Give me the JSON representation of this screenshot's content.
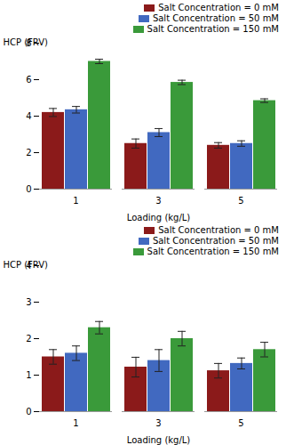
{
  "chart_data": [
    {
      "type": "bar",
      "categories": [
        "1",
        "3",
        "5"
      ],
      "series": [
        {
          "name": "Salt Concentration = 0 mM",
          "color": "#8B1A1A",
          "values": [
            4.2,
            2.5,
            2.4
          ],
          "errors": [
            0.22,
            0.25,
            0.15
          ]
        },
        {
          "name": "Salt Concentration = 50 mM",
          "color": "#4169C0",
          "values": [
            4.35,
            3.1,
            2.5
          ],
          "errors": [
            0.18,
            0.22,
            0.15
          ]
        },
        {
          "name": "Salt Concentration = 150 mM",
          "color": "#3A9A3A",
          "values": [
            7.0,
            5.85,
            4.85
          ],
          "errors": [
            0.12,
            0.12,
            0.1
          ]
        }
      ],
      "xlabel": "Loading (kg/L)",
      "ylabel": "HCP (FRV)",
      "ylim": [
        0,
        8
      ],
      "yticks": [
        0,
        2,
        4,
        6,
        8
      ],
      "legend": "upper right",
      "grid": false
    },
    {
      "type": "bar",
      "categories": [
        "1",
        "3",
        "5"
      ],
      "series": [
        {
          "name": "Salt Concentration = 0 mM",
          "color": "#8B1A1A",
          "values": [
            1.5,
            1.22,
            1.12
          ],
          "errors": [
            0.2,
            0.27,
            0.2
          ]
        },
        {
          "name": "Salt Concentration = 50 mM",
          "color": "#4169C0",
          "values": [
            1.6,
            1.4,
            1.32
          ],
          "errors": [
            0.2,
            0.3,
            0.15
          ]
        },
        {
          "name": "Salt Concentration = 150 mM",
          "color": "#3A9A3A",
          "values": [
            2.3,
            2.0,
            1.7
          ],
          "errors": [
            0.17,
            0.2,
            0.2
          ]
        }
      ],
      "xlabel": "Loading (kg/L)",
      "ylabel": "HCP (FRV)",
      "ylim": [
        0,
        4
      ],
      "yticks": [
        0,
        1,
        2,
        3,
        4
      ],
      "legend": "upper right",
      "grid": false
    }
  ]
}
